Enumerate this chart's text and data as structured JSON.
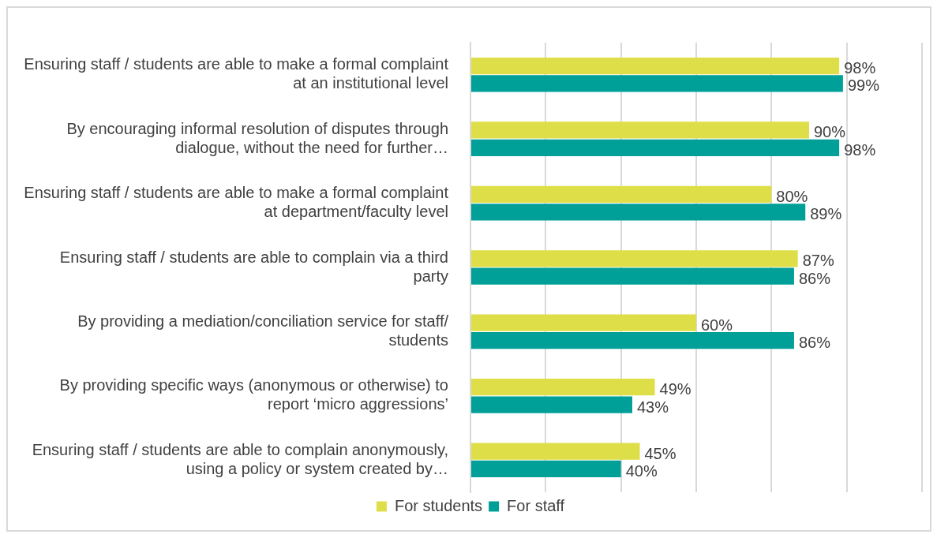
{
  "chart_data": {
    "type": "bar",
    "orientation": "horizontal",
    "categories": [
      "Ensuring staff / students are able to make a formal complaint at an institutional level",
      "By encouraging informal resolution of disputes through dialogue, without the need for further…",
      "Ensuring staff / students are able to make a formal complaint at department/faculty level",
      "Ensuring staff / students are able to complain via a third party",
      "By providing a mediation/conciliation service for staff/ students",
      "By providing specific ways (anonymous or otherwise) to report ‘micro aggressions’",
      "Ensuring staff / students are able to complain anonymously, using a policy or system created by…"
    ],
    "series": [
      {
        "name": "For students",
        "color": "#dedf48",
        "values": [
          98,
          90,
          80,
          87,
          60,
          49,
          45
        ],
        "value_labels": [
          "98%",
          "90%",
          "80%",
          "87%",
          "60%",
          "49%",
          "45%"
        ]
      },
      {
        "name": "For staff",
        "color": "#009f98",
        "values": [
          99,
          98,
          89,
          86,
          86,
          43,
          40
        ],
        "value_labels": [
          "99%",
          "98%",
          "89%",
          "86%",
          "86%",
          "43%",
          "40%"
        ]
      }
    ],
    "xlim": [
      0,
      120
    ],
    "xticks": [
      {
        "value": 0,
        "label": null
      },
      {
        "value": 20,
        "label": null
      },
      {
        "value": 40,
        "label": null
      },
      {
        "value": 60,
        "label": null
      },
      {
        "value": 80,
        "label": null
      },
      {
        "value": 100,
        "label": null
      },
      {
        "value": 120,
        "label": null
      }
    ],
    "tick_labels": "y",
    "grid": "x",
    "legend": "bottom"
  }
}
